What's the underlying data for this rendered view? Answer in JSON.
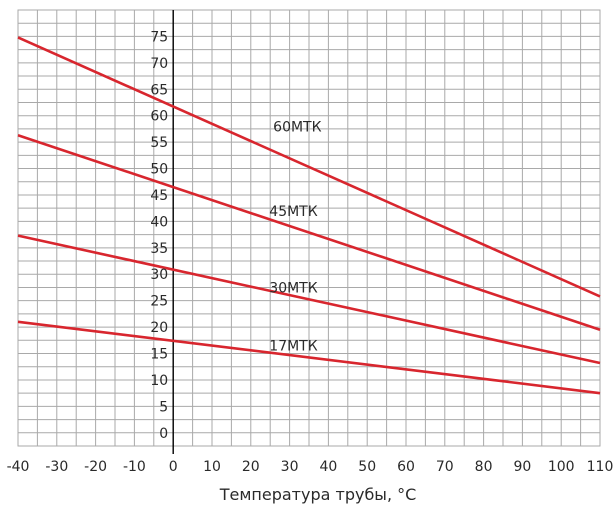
{
  "chart_data": {
    "type": "line",
    "xlabel": "Температура трубы, °C",
    "ylabel": "",
    "xlim": [
      -40,
      110
    ],
    "ylim": [
      -2.5,
      80
    ],
    "grid": true,
    "x_ticks": [
      -40,
      -30,
      -20,
      -10,
      0,
      10,
      20,
      30,
      40,
      50,
      60,
      70,
      80,
      90,
      100,
      110
    ],
    "y_ticks": [
      0,
      5,
      10,
      15,
      20,
      25,
      30,
      35,
      40,
      45,
      50,
      55,
      60,
      65,
      70,
      75
    ],
    "series": [
      {
        "name": "60МТК",
        "x": [
          -40,
          110
        ],
        "y": [
          74.8,
          25.8
        ],
        "label_at": [
          32,
          58
        ]
      },
      {
        "name": "45МТК",
        "x": [
          -40,
          110
        ],
        "y": [
          56.3,
          19.5
        ],
        "label_at": [
          31,
          42
        ]
      },
      {
        "name": "30МТК",
        "x": [
          -40,
          110
        ],
        "y": [
          37.3,
          13.2
        ],
        "label_at": [
          31,
          27.5
        ]
      },
      {
        "name": "17МТК",
        "x": [
          -40,
          110
        ],
        "y": [
          21.0,
          7.5
        ],
        "label_at": [
          31,
          16.5
        ]
      }
    ],
    "line_color": "#d8262e"
  }
}
